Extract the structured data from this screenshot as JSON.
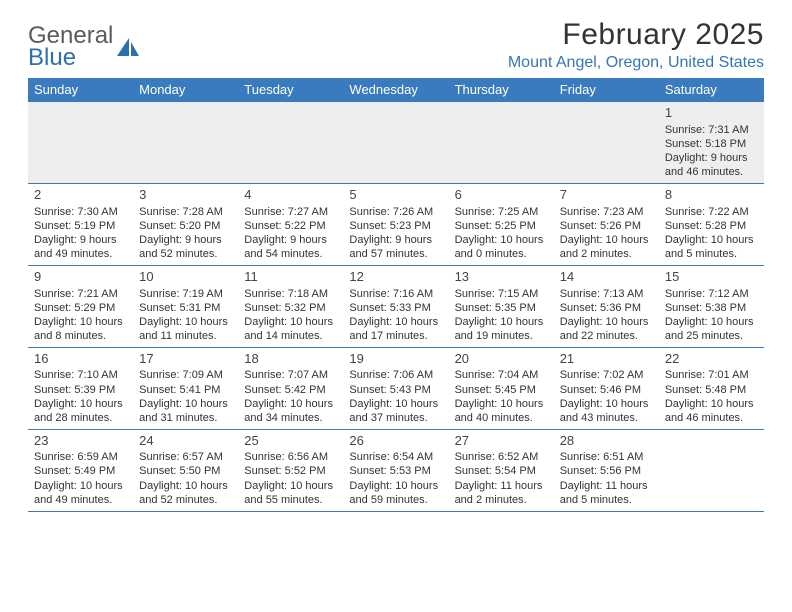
{
  "brand": {
    "line1": "General",
    "line2": "Blue"
  },
  "title": "February 2025",
  "location": "Mount Angel, Oregon, United States",
  "colors": {
    "header_bar": "#3a7bbf",
    "location_text": "#3576b6",
    "rule": "#3a7bbf",
    "logo_gray": "#5b5b5b",
    "logo_blue": "#2f6fab"
  },
  "daysOfWeek": [
    "Sunday",
    "Monday",
    "Tuesday",
    "Wednesday",
    "Thursday",
    "Friday",
    "Saturday"
  ],
  "weeks": [
    [
      {
        "n": "",
        "sr": "",
        "ss": "",
        "dl": ""
      },
      {
        "n": "",
        "sr": "",
        "ss": "",
        "dl": ""
      },
      {
        "n": "",
        "sr": "",
        "ss": "",
        "dl": ""
      },
      {
        "n": "",
        "sr": "",
        "ss": "",
        "dl": ""
      },
      {
        "n": "",
        "sr": "",
        "ss": "",
        "dl": ""
      },
      {
        "n": "",
        "sr": "",
        "ss": "",
        "dl": ""
      },
      {
        "n": "1",
        "sr": "Sunrise: 7:31 AM",
        "ss": "Sunset: 5:18 PM",
        "dl": "Daylight: 9 hours and 46 minutes."
      }
    ],
    [
      {
        "n": "2",
        "sr": "Sunrise: 7:30 AM",
        "ss": "Sunset: 5:19 PM",
        "dl": "Daylight: 9 hours and 49 minutes."
      },
      {
        "n": "3",
        "sr": "Sunrise: 7:28 AM",
        "ss": "Sunset: 5:20 PM",
        "dl": "Daylight: 9 hours and 52 minutes."
      },
      {
        "n": "4",
        "sr": "Sunrise: 7:27 AM",
        "ss": "Sunset: 5:22 PM",
        "dl": "Daylight: 9 hours and 54 minutes."
      },
      {
        "n": "5",
        "sr": "Sunrise: 7:26 AM",
        "ss": "Sunset: 5:23 PM",
        "dl": "Daylight: 9 hours and 57 minutes."
      },
      {
        "n": "6",
        "sr": "Sunrise: 7:25 AM",
        "ss": "Sunset: 5:25 PM",
        "dl": "Daylight: 10 hours and 0 minutes."
      },
      {
        "n": "7",
        "sr": "Sunrise: 7:23 AM",
        "ss": "Sunset: 5:26 PM",
        "dl": "Daylight: 10 hours and 2 minutes."
      },
      {
        "n": "8",
        "sr": "Sunrise: 7:22 AM",
        "ss": "Sunset: 5:28 PM",
        "dl": "Daylight: 10 hours and 5 minutes."
      }
    ],
    [
      {
        "n": "9",
        "sr": "Sunrise: 7:21 AM",
        "ss": "Sunset: 5:29 PM",
        "dl": "Daylight: 10 hours and 8 minutes."
      },
      {
        "n": "10",
        "sr": "Sunrise: 7:19 AM",
        "ss": "Sunset: 5:31 PM",
        "dl": "Daylight: 10 hours and 11 minutes."
      },
      {
        "n": "11",
        "sr": "Sunrise: 7:18 AM",
        "ss": "Sunset: 5:32 PM",
        "dl": "Daylight: 10 hours and 14 minutes."
      },
      {
        "n": "12",
        "sr": "Sunrise: 7:16 AM",
        "ss": "Sunset: 5:33 PM",
        "dl": "Daylight: 10 hours and 17 minutes."
      },
      {
        "n": "13",
        "sr": "Sunrise: 7:15 AM",
        "ss": "Sunset: 5:35 PM",
        "dl": "Daylight: 10 hours and 19 minutes."
      },
      {
        "n": "14",
        "sr": "Sunrise: 7:13 AM",
        "ss": "Sunset: 5:36 PM",
        "dl": "Daylight: 10 hours and 22 minutes."
      },
      {
        "n": "15",
        "sr": "Sunrise: 7:12 AM",
        "ss": "Sunset: 5:38 PM",
        "dl": "Daylight: 10 hours and 25 minutes."
      }
    ],
    [
      {
        "n": "16",
        "sr": "Sunrise: 7:10 AM",
        "ss": "Sunset: 5:39 PM",
        "dl": "Daylight: 10 hours and 28 minutes."
      },
      {
        "n": "17",
        "sr": "Sunrise: 7:09 AM",
        "ss": "Sunset: 5:41 PM",
        "dl": "Daylight: 10 hours and 31 minutes."
      },
      {
        "n": "18",
        "sr": "Sunrise: 7:07 AM",
        "ss": "Sunset: 5:42 PM",
        "dl": "Daylight: 10 hours and 34 minutes."
      },
      {
        "n": "19",
        "sr": "Sunrise: 7:06 AM",
        "ss": "Sunset: 5:43 PM",
        "dl": "Daylight: 10 hours and 37 minutes."
      },
      {
        "n": "20",
        "sr": "Sunrise: 7:04 AM",
        "ss": "Sunset: 5:45 PM",
        "dl": "Daylight: 10 hours and 40 minutes."
      },
      {
        "n": "21",
        "sr": "Sunrise: 7:02 AM",
        "ss": "Sunset: 5:46 PM",
        "dl": "Daylight: 10 hours and 43 minutes."
      },
      {
        "n": "22",
        "sr": "Sunrise: 7:01 AM",
        "ss": "Sunset: 5:48 PM",
        "dl": "Daylight: 10 hours and 46 minutes."
      }
    ],
    [
      {
        "n": "23",
        "sr": "Sunrise: 6:59 AM",
        "ss": "Sunset: 5:49 PM",
        "dl": "Daylight: 10 hours and 49 minutes."
      },
      {
        "n": "24",
        "sr": "Sunrise: 6:57 AM",
        "ss": "Sunset: 5:50 PM",
        "dl": "Daylight: 10 hours and 52 minutes."
      },
      {
        "n": "25",
        "sr": "Sunrise: 6:56 AM",
        "ss": "Sunset: 5:52 PM",
        "dl": "Daylight: 10 hours and 55 minutes."
      },
      {
        "n": "26",
        "sr": "Sunrise: 6:54 AM",
        "ss": "Sunset: 5:53 PM",
        "dl": "Daylight: 10 hours and 59 minutes."
      },
      {
        "n": "27",
        "sr": "Sunrise: 6:52 AM",
        "ss": "Sunset: 5:54 PM",
        "dl": "Daylight: 11 hours and 2 minutes."
      },
      {
        "n": "28",
        "sr": "Sunrise: 6:51 AM",
        "ss": "Sunset: 5:56 PM",
        "dl": "Daylight: 11 hours and 5 minutes."
      },
      {
        "n": "",
        "sr": "",
        "ss": "",
        "dl": ""
      }
    ]
  ]
}
